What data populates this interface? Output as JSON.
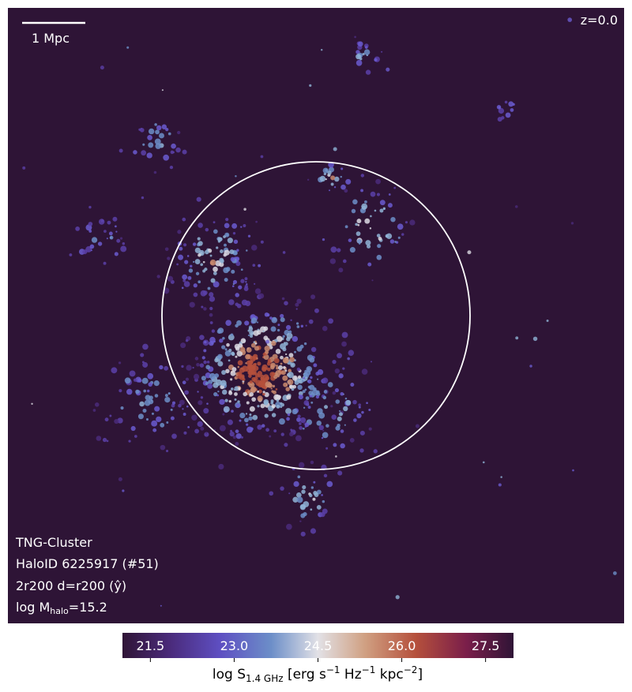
{
  "chart_data": {
    "type": "image",
    "scale_bar_label": "1 Mpc",
    "redshift_label": "z=0.0",
    "info_lines": [
      "TNG-Cluster",
      "HaloID 6225917 (#51)",
      "2r200 d=r200 (ŷ)"
    ],
    "mass_label": [
      "log M",
      "halo",
      "=15.2"
    ],
    "colorbar": {
      "clim": [
        21,
        28
      ],
      "ticks": [
        21.5,
        {
          "value": 23,
          "label": "23.0"
        },
        24.5,
        {
          "value": 26,
          "label": "26.0"
        },
        27.5
      ],
      "label": [
        "log S",
        "1.4 GHz",
        " [erg s",
        "−1",
        " Hz",
        "−1",
        " kpc",
        "−2",
        "]"
      ]
    }
  }
}
